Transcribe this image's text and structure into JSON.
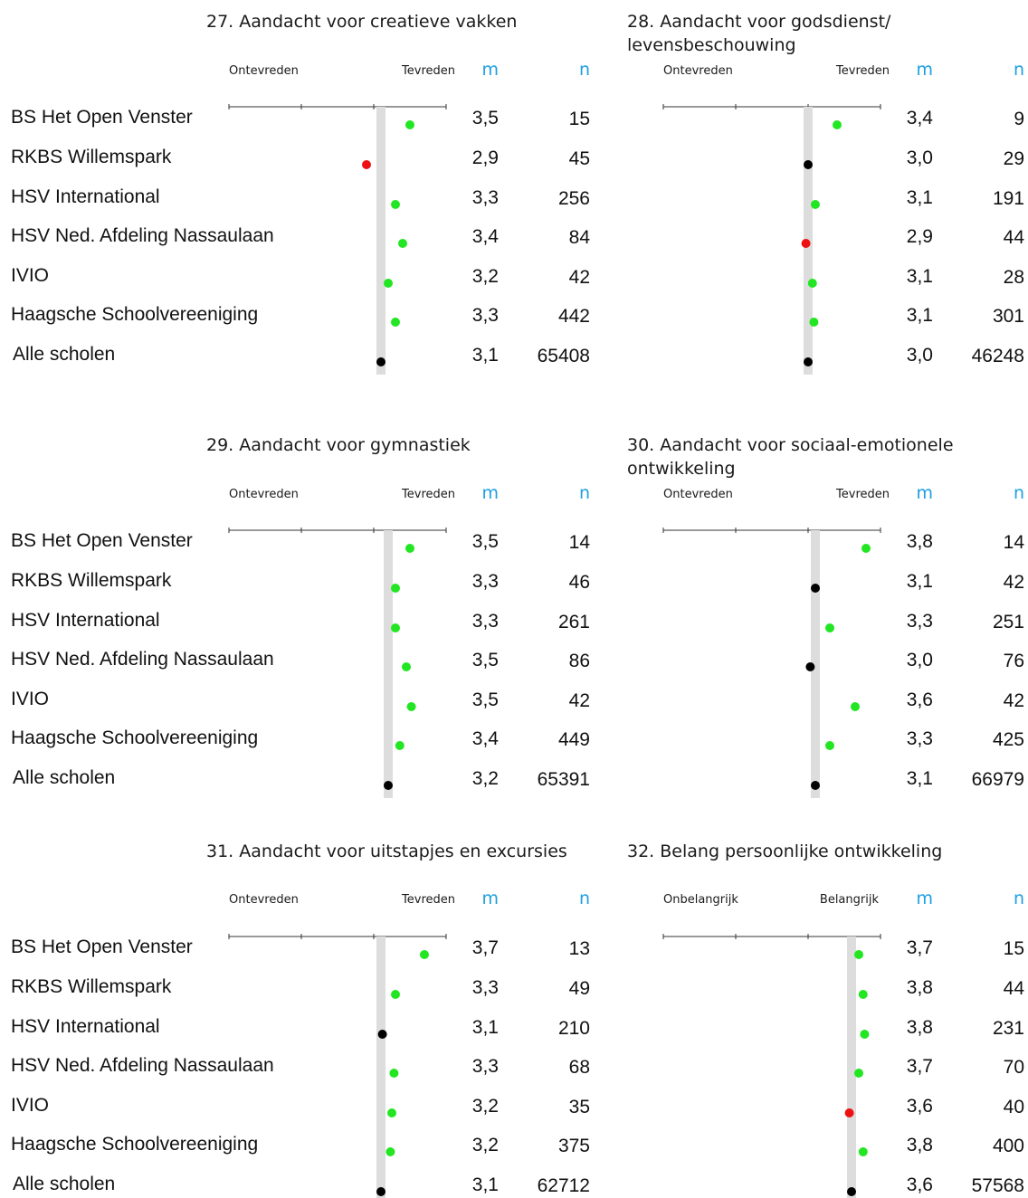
{
  "schools": [
    "BS Het Open Venster",
    "RKBS Willemspark",
    "HSV International",
    "HSV Ned. Afdeling Nassaulaan",
    "IVIO",
    "Haagsche Schoolvereeniging",
    "Alle scholen"
  ],
  "column_headers": {
    "m": "m",
    "n": "n"
  },
  "colors": {
    "above": "#22e622",
    "below": "#ee1111",
    "neutral": "#000000",
    "reference": "#dddddd",
    "axis": "#333333",
    "header": "#1e9fe0"
  },
  "chart_data": [
    {
      "type": "scatter",
      "title": "27. Aandacht voor creatieve vakken",
      "scale_left": "Ontevreden",
      "scale_right": "Tevreden",
      "xlim": [
        1,
        4
      ],
      "reference_value": 3.1,
      "rows": [
        {
          "school": "BS Het Open Venster",
          "m": "3,5",
          "n": "15",
          "value": 3.5,
          "status": "above"
        },
        {
          "school": "RKBS Willemspark",
          "m": "2,9",
          "n": "45",
          "value": 2.9,
          "status": "below"
        },
        {
          "school": "HSV International",
          "m": "3,3",
          "n": "256",
          "value": 3.3,
          "status": "above"
        },
        {
          "school": "HSV Ned. Afdeling Nassaulaan",
          "m": "3,4",
          "n": "84",
          "value": 3.4,
          "status": "above"
        },
        {
          "school": "IVIO",
          "m": "3,2",
          "n": "42",
          "value": 3.2,
          "status": "above"
        },
        {
          "school": "Haagsche Schoolvereeniging",
          "m": "3,3",
          "n": "442",
          "value": 3.3,
          "status": "above"
        },
        {
          "school": "Alle scholen",
          "m": "3,1",
          "n": "65408",
          "value": 3.1,
          "status": "neutral"
        }
      ]
    },
    {
      "type": "scatter",
      "title": "28. Aandacht voor godsdienst/\nlevensbeschouwing",
      "scale_left": "Ontevreden",
      "scale_right": "Tevreden",
      "xlim": [
        1,
        4
      ],
      "reference_value": 3.0,
      "rows": [
        {
          "school": "BS Het Open Venster",
          "m": "3,4",
          "n": "9",
          "value": 3.4,
          "status": "above"
        },
        {
          "school": "RKBS Willemspark",
          "m": "3,0",
          "n": "29",
          "value": 3.0,
          "status": "neutral"
        },
        {
          "school": "HSV International",
          "m": "3,1",
          "n": "191",
          "value": 3.1,
          "status": "above"
        },
        {
          "school": "HSV Ned. Afdeling Nassaulaan",
          "m": "2,9",
          "n": "44",
          "value": 2.97,
          "status": "below"
        },
        {
          "school": "IVIO",
          "m": "3,1",
          "n": "28",
          "value": 3.06,
          "status": "above"
        },
        {
          "school": "Haagsche Schoolvereeniging",
          "m": "3,1",
          "n": "301",
          "value": 3.08,
          "status": "above"
        },
        {
          "school": "Alle scholen",
          "m": "3,0",
          "n": "46248",
          "value": 3.0,
          "status": "neutral"
        }
      ]
    },
    {
      "type": "scatter",
      "title": "29. Aandacht voor gymnastiek",
      "scale_left": "Ontevreden",
      "scale_right": "Tevreden",
      "xlim": [
        1,
        4
      ],
      "reference_value": 3.2,
      "rows": [
        {
          "school": "BS Het Open Venster",
          "m": "3,5",
          "n": "14",
          "value": 3.5,
          "status": "above"
        },
        {
          "school": "RKBS Willemspark",
          "m": "3,3",
          "n": "46",
          "value": 3.3,
          "status": "above"
        },
        {
          "school": "HSV International",
          "m": "3,3",
          "n": "261",
          "value": 3.3,
          "status": "above"
        },
        {
          "school": "HSV Ned. Afdeling Nassaulaan",
          "m": "3,5",
          "n": "86",
          "value": 3.45,
          "status": "above"
        },
        {
          "school": "IVIO",
          "m": "3,5",
          "n": "42",
          "value": 3.52,
          "status": "above"
        },
        {
          "school": "Haagsche Schoolvereeniging",
          "m": "3,4",
          "n": "449",
          "value": 3.36,
          "status": "above"
        },
        {
          "school": "Alle scholen",
          "m": "3,2",
          "n": "65391",
          "value": 3.2,
          "status": "neutral"
        }
      ]
    },
    {
      "type": "scatter",
      "title": "30. Aandacht voor sociaal-emotionele\nontwikkeling",
      "scale_left": "Ontevreden",
      "scale_right": "Tevreden",
      "xlim": [
        1,
        4
      ],
      "reference_value": 3.1,
      "rows": [
        {
          "school": "BS Het Open Venster",
          "m": "3,8",
          "n": "14",
          "value": 3.8,
          "status": "above"
        },
        {
          "school": "RKBS Willemspark",
          "m": "3,1",
          "n": "42",
          "value": 3.1,
          "status": "neutral"
        },
        {
          "school": "HSV International",
          "m": "3,3",
          "n": "251",
          "value": 3.3,
          "status": "above"
        },
        {
          "school": "HSV Ned. Afdeling Nassaulaan",
          "m": "3,0",
          "n": "76",
          "value": 3.03,
          "status": "neutral"
        },
        {
          "school": "IVIO",
          "m": "3,6",
          "n": "42",
          "value": 3.65,
          "status": "above"
        },
        {
          "school": "Haagsche Schoolvereeniging",
          "m": "3,3",
          "n": "425",
          "value": 3.3,
          "status": "above"
        },
        {
          "school": "Alle scholen",
          "m": "3,1",
          "n": "66979",
          "value": 3.1,
          "status": "neutral"
        }
      ]
    },
    {
      "type": "scatter",
      "title": "31. Aandacht voor uitstapjes en excursies",
      "scale_left": "Ontevreden",
      "scale_right": "Tevreden",
      "xlim": [
        1,
        4
      ],
      "reference_value": 3.1,
      "rows": [
        {
          "school": "BS Het Open Venster",
          "m": "3,7",
          "n": "13",
          "value": 3.7,
          "status": "above"
        },
        {
          "school": "RKBS Willemspark",
          "m": "3,3",
          "n": "49",
          "value": 3.3,
          "status": "above"
        },
        {
          "school": "HSV International",
          "m": "3,1",
          "n": "210",
          "value": 3.12,
          "status": "neutral"
        },
        {
          "school": "HSV Ned. Afdeling Nassaulaan",
          "m": "3,3",
          "n": "68",
          "value": 3.28,
          "status": "above"
        },
        {
          "school": "IVIO",
          "m": "3,2",
          "n": "35",
          "value": 3.25,
          "status": "above"
        },
        {
          "school": "Haagsche Schoolvereeniging",
          "m": "3,2",
          "n": "375",
          "value": 3.23,
          "status": "above"
        },
        {
          "school": "Alle scholen",
          "m": "3,1",
          "n": "62712",
          "value": 3.1,
          "status": "neutral"
        }
      ]
    },
    {
      "type": "scatter",
      "title": "32. Belang persoonlijke ontwikkeling",
      "scale_left": "Onbelangrijk",
      "scale_right": "Belangrijk",
      "xlim": [
        1,
        4
      ],
      "reference_value": 3.6,
      "rows": [
        {
          "school": "BS Het Open Venster",
          "m": "3,7",
          "n": "15",
          "value": 3.7,
          "status": "above"
        },
        {
          "school": "RKBS Willemspark",
          "m": "3,8",
          "n": "44",
          "value": 3.76,
          "status": "above"
        },
        {
          "school": "HSV International",
          "m": "3,8",
          "n": "231",
          "value": 3.78,
          "status": "above"
        },
        {
          "school": "HSV Ned. Afdeling Nassaulaan",
          "m": "3,7",
          "n": "70",
          "value": 3.7,
          "status": "above"
        },
        {
          "school": "IVIO",
          "m": "3,6",
          "n": "40",
          "value": 3.57,
          "status": "below"
        },
        {
          "school": "Haagsche Schoolvereeniging",
          "m": "3,8",
          "n": "400",
          "value": 3.76,
          "status": "above"
        },
        {
          "school": "Alle scholen",
          "m": "3,6",
          "n": "57568",
          "value": 3.6,
          "status": "neutral"
        }
      ]
    }
  ]
}
